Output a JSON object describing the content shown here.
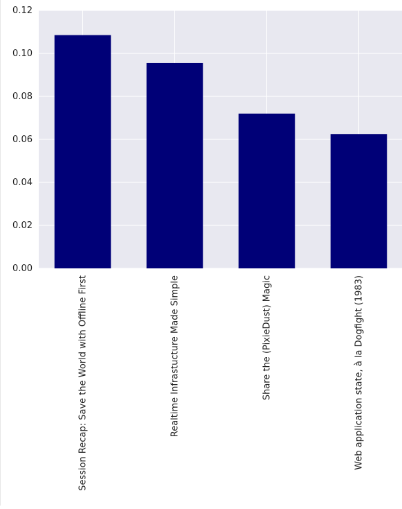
{
  "chart_data": {
    "type": "bar",
    "title": "",
    "xlabel": "",
    "ylabel": "",
    "categories": [
      "Session Recap: Save the World with Offline First",
      "Realtime Infrastucture Made Simple",
      "Share the (PixieDust) Magic",
      "Web application state, à la Dogfight (1983)"
    ],
    "values": [
      0.1085,
      0.0955,
      0.072,
      0.0625
    ],
    "ylim": [
      0,
      0.12
    ],
    "yticks": [
      "0.00",
      "0.02",
      "0.04",
      "0.06",
      "0.08",
      "0.10",
      "0.12"
    ],
    "grid": true,
    "colors": {
      "bar": "#000077",
      "plot_bg": "#e8e8f0",
      "grid": "#ffffff"
    }
  }
}
